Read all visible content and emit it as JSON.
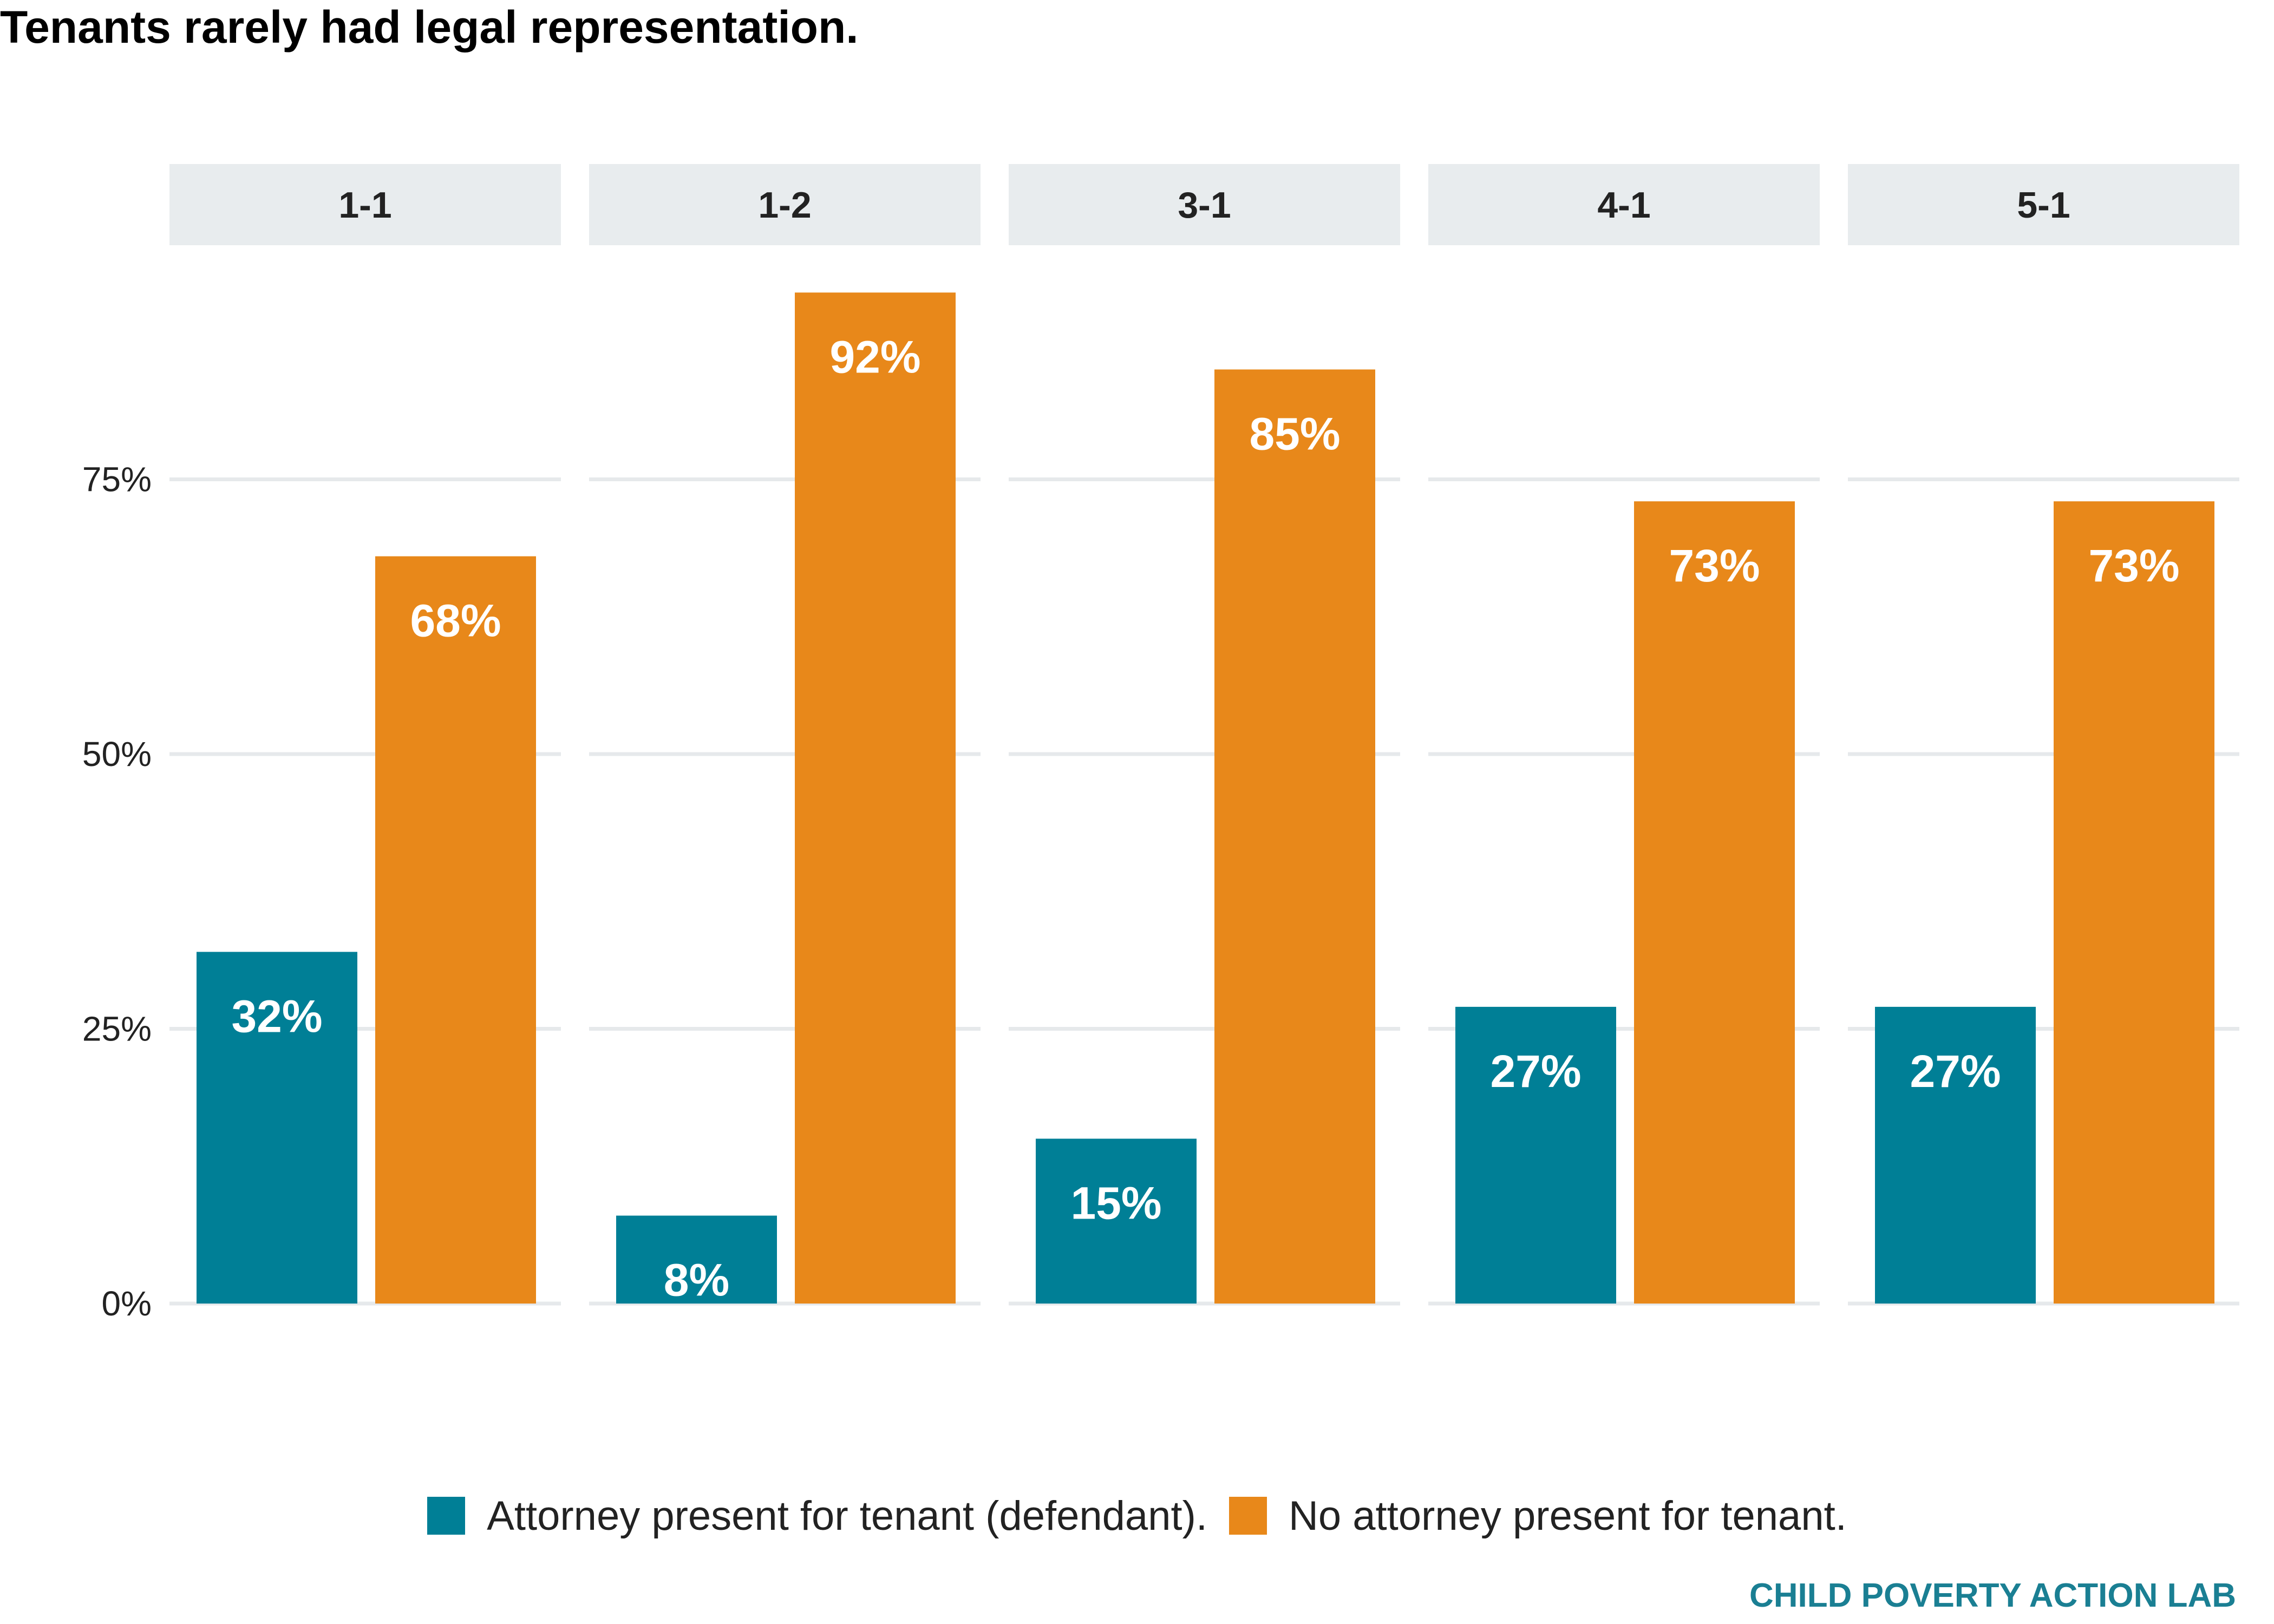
{
  "chart_data": {
    "type": "bar",
    "title": "Tenants rarely had legal representation.",
    "facets": [
      "1-1",
      "1-2",
      "3-1",
      "4-1",
      "5-1"
    ],
    "series": [
      {
        "name": "Attorney present for tenant (defendant).",
        "color": "#007f96",
        "values": [
          32,
          8,
          15,
          27,
          27
        ],
        "labels": [
          "32%",
          "8%",
          "15%",
          "27%",
          "27%"
        ]
      },
      {
        "name": "No attorney present for tenant.",
        "color": "#e8881a",
        "values": [
          68,
          92,
          85,
          73,
          73
        ],
        "labels": [
          "68%",
          "92%",
          "85%",
          "73%",
          "73%"
        ]
      }
    ],
    "y_ticks": [
      0,
      25,
      50,
      75
    ],
    "y_tick_labels": [
      "0%",
      "25%",
      "50%",
      "75%"
    ],
    "ylim": [
      0,
      100
    ],
    "grid": true,
    "legend_position": "bottom",
    "strip_color": "#e8ecee",
    "grid_color": "#e6e9eb"
  },
  "footer": {
    "source": "CHILD POVERTY ACTION LAB"
  }
}
